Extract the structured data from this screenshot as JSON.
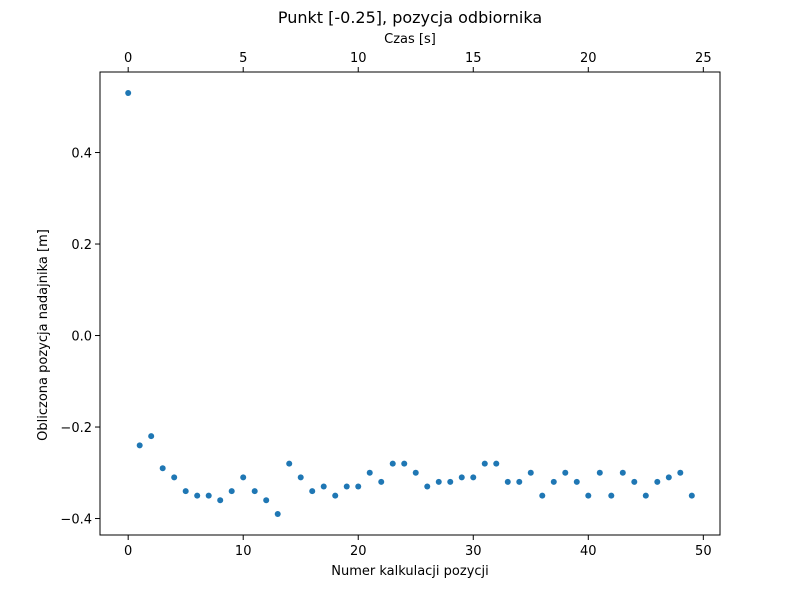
{
  "chart_data": {
    "type": "scatter",
    "title": "Punkt [-0.25], pozycja odbiornika",
    "xlabel": "Numer kalkulacji pozycji",
    "ylabel": "Obliczona pozycja nadajnika [m]",
    "x2label": "Czas [s]",
    "xlim": [
      -2.45,
      51.45
    ],
    "ylim": [
      -0.436,
      0.576
    ],
    "x2lim": [
      -1.225,
      25.725
    ],
    "xticks": [
      0,
      10,
      20,
      30,
      40,
      50
    ],
    "xtick_labels": [
      "0",
      "10",
      "20",
      "30",
      "40",
      "50"
    ],
    "yticks": [
      -0.4,
      -0.2,
      0.0,
      0.2,
      0.4
    ],
    "ytick_labels": [
      "−0.4",
      "−0.2",
      "0.0",
      "0.2",
      "0.4"
    ],
    "x2ticks": [
      0,
      5,
      10,
      15,
      20,
      25
    ],
    "x2tick_labels": [
      "0",
      "5",
      "10",
      "15",
      "20",
      "25"
    ],
    "grid": false,
    "color": "#1f77b4",
    "series": [
      {
        "x": [
          0,
          1,
          2,
          3,
          4,
          5,
          6,
          7,
          8,
          9,
          10,
          11,
          12,
          13,
          14,
          15,
          16,
          17,
          18,
          19,
          20,
          21,
          22,
          23,
          24,
          25,
          26,
          27,
          28,
          29,
          30,
          31,
          32,
          33,
          34,
          35,
          36,
          37,
          38,
          39,
          40,
          41,
          42,
          43,
          44,
          45,
          46,
          47,
          48,
          49
        ],
        "y": [
          0.53,
          -0.24,
          -0.22,
          -0.29,
          -0.31,
          -0.34,
          -0.35,
          -0.35,
          -0.36,
          -0.34,
          -0.31,
          -0.34,
          -0.36,
          -0.39,
          -0.28,
          -0.31,
          -0.34,
          -0.33,
          -0.35,
          -0.33,
          -0.33,
          -0.3,
          -0.32,
          -0.28,
          -0.28,
          -0.3,
          -0.33,
          -0.32,
          -0.32,
          -0.31,
          -0.31,
          -0.28,
          -0.28,
          -0.32,
          -0.32,
          -0.3,
          -0.35,
          -0.32,
          -0.3,
          -0.32,
          -0.35,
          -0.3,
          -0.35,
          -0.3,
          -0.32,
          -0.35,
          -0.32,
          -0.31,
          -0.3,
          -0.35
        ]
      }
    ]
  }
}
